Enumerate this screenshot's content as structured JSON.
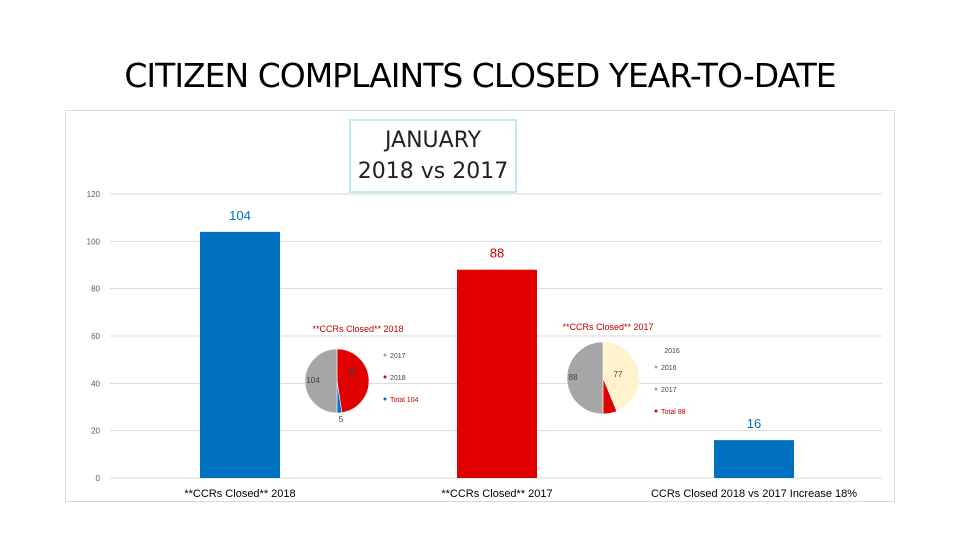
{
  "page": {
    "title": "CITIZEN COMPLAINTS CLOSED YEAR-TO-DATE",
    "subtitle_line1": "JANUARY",
    "subtitle_line2": "2018 vs 2017"
  },
  "chart_data": [
    {
      "type": "bar",
      "categories": [
        "**CCRs Closed** 2018",
        "**CCRs Closed** 2017",
        "CCRs Closed 2018 vs 2017 Increase  18%"
      ],
      "values": [
        104,
        88,
        16
      ],
      "value_labels": [
        "104",
        "88",
        "16"
      ],
      "bar_colors": [
        "#0070c0",
        "#e00000",
        "#0070c0"
      ],
      "label_colors": [
        "#0070c0",
        "#c00000",
        "#0070c0"
      ],
      "ylim": [
        0,
        120
      ],
      "yticks": [
        0,
        20,
        40,
        60,
        80,
        100,
        120
      ],
      "grid": true
    },
    {
      "type": "pie",
      "title": "**CCRs Closed** 2018",
      "slices": [
        {
          "label": "2017",
          "value": 99,
          "color": "#e00000"
        },
        {
          "label": "2018",
          "value": 5,
          "color": "#0070c0"
        },
        {
          "label": "Total 104",
          "value": 104,
          "color": "#a6a6a6"
        }
      ],
      "data_labels": [
        "99",
        "5",
        "104"
      ],
      "legend": [
        "2017",
        "2018",
        "Total 104"
      ],
      "legend_colors": [
        "#a6a6a6",
        "#e00000",
        "#0070c0"
      ],
      "legend_placement": "right"
    },
    {
      "type": "pie",
      "title": "**CCRs Closed** 2017",
      "slices": [
        {
          "label": "2016",
          "value": 77,
          "color": "#fff2cc"
        },
        {
          "label": "2017",
          "value": 11,
          "color": "#e00000"
        },
        {
          "label": "Total 88",
          "value": 88,
          "color": "#a6a6a6"
        }
      ],
      "data_labels": [
        "77",
        "88"
      ],
      "legend": [
        "2016",
        "2017",
        "Total 88"
      ],
      "legend_colors": [
        "#a6a6a6",
        "#a6a6a6",
        "#e00000"
      ],
      "legend_placement": "right"
    }
  ]
}
